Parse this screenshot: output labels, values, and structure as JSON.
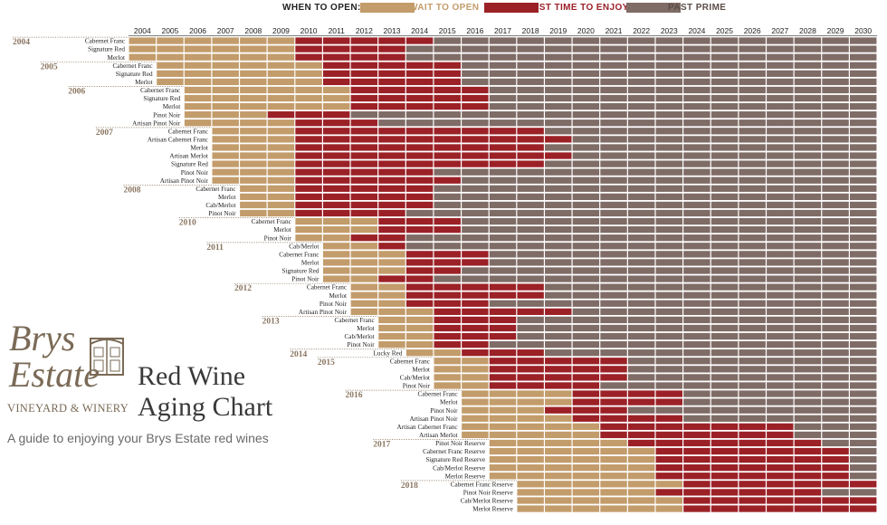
{
  "legend": {
    "title": "WHEN TO OPEN:",
    "items": [
      {
        "label": "WAIT TO OPEN",
        "color": "#c39c6b"
      },
      {
        "label": "BEST TIME TO ENJOY",
        "color": "#9b2127"
      },
      {
        "label": "PAST PRIME",
        "color": "#7f6c66"
      }
    ]
  },
  "branding": {
    "logo_line1": "Brys",
    "logo_line2": "Estate",
    "logo_sub": "VINEYARD & WINERY",
    "title_line1": "Red Wine",
    "title_line2": "Aging Chart",
    "tagline": "A guide to enjoying your Brys Estate red wines"
  },
  "chart_data": {
    "type": "timeline",
    "title": "Red Wine Aging Chart",
    "years": [
      2004,
      2005,
      2006,
      2007,
      2008,
      2009,
      2010,
      2011,
      2012,
      2013,
      2014,
      2015,
      2016,
      2017,
      2018,
      2019,
      2020,
      2021,
      2022,
      2023,
      2024,
      2025,
      2026,
      2027,
      2028,
      2029,
      2030
    ],
    "phases": [
      "Wait to open",
      "Best time to enjoy",
      "Past prime"
    ],
    "vintages": [
      {
        "vintage": "2004",
        "wines": [
          {
            "name": "Cabernet Franc",
            "start": 2004,
            "best": 2010,
            "past": 2015
          },
          {
            "name": "Signature Red",
            "start": 2004,
            "best": 2010,
            "past": 2014
          },
          {
            "name": "Merlot",
            "start": 2004,
            "best": 2010,
            "past": 2014
          }
        ]
      },
      {
        "vintage": "2005",
        "wines": [
          {
            "name": "Cabernet Franc",
            "start": 2005,
            "best": 2011,
            "past": 2016
          },
          {
            "name": "Signature Red",
            "start": 2005,
            "best": 2011,
            "past": 2016
          },
          {
            "name": "Merlot",
            "start": 2005,
            "best": 2011,
            "past": 2016
          }
        ]
      },
      {
        "vintage": "2006",
        "wines": [
          {
            "name": "Cabernet Franc",
            "start": 2006,
            "best": 2012,
            "past": 2017
          },
          {
            "name": "Signature Red",
            "start": 2006,
            "best": 2012,
            "past": 2017
          },
          {
            "name": "Merlot",
            "start": 2006,
            "best": 2012,
            "past": 2017
          },
          {
            "name": "Pinot Noir",
            "start": 2006,
            "best": 2009,
            "past": 2012
          },
          {
            "name": "Artisan Pinot Noir",
            "start": 2006,
            "best": 2010,
            "past": 2013
          }
        ]
      },
      {
        "vintage": "2007",
        "wines": [
          {
            "name": "Cabernet Franc",
            "start": 2007,
            "best": 2010,
            "past": 2019
          },
          {
            "name": "Artisan Cabernet Franc",
            "start": 2007,
            "best": 2010,
            "past": 2020
          },
          {
            "name": "Merlot",
            "start": 2007,
            "best": 2010,
            "past": 2019
          },
          {
            "name": "Artisan Merlot",
            "start": 2007,
            "best": 2010,
            "past": 2020
          },
          {
            "name": "Signature Red",
            "start": 2007,
            "best": 2010,
            "past": 2019
          },
          {
            "name": "Pinot Noir",
            "start": 2007,
            "best": 2010,
            "past": 2015
          },
          {
            "name": "Artisan Pinot Noir",
            "start": 2007,
            "best": 2010,
            "past": 2016
          }
        ]
      },
      {
        "vintage": "2008",
        "wines": [
          {
            "name": "Cabernet Franc",
            "start": 2008,
            "best": 2010,
            "past": 2015
          },
          {
            "name": "Merlot",
            "start": 2008,
            "best": 2010,
            "past": 2015
          },
          {
            "name": "Cab/Merlot",
            "start": 2008,
            "best": 2010,
            "past": 2015
          },
          {
            "name": "Pinot Noir",
            "start": 2008,
            "best": 2010,
            "past": 2014
          }
        ]
      },
      {
        "vintage": "2010",
        "wines": [
          {
            "name": "Cabernet Franc",
            "start": 2010,
            "best": 2013,
            "past": 2016
          },
          {
            "name": "Merlot",
            "start": 2010,
            "best": 2013,
            "past": 2016
          },
          {
            "name": "Pinot Noir",
            "start": 2010,
            "best": 2012,
            "past": 2014
          }
        ]
      },
      {
        "vintage": "2011",
        "wines": [
          {
            "name": "Cab/Merlot",
            "start": 2011,
            "best": 2013,
            "past": 2014
          },
          {
            "name": "Cabernet Franc",
            "start": 2011,
            "best": 2014,
            "past": 2017
          },
          {
            "name": "Merlot",
            "start": 2011,
            "best": 2014,
            "past": 2017
          },
          {
            "name": "Signature Red",
            "start": 2011,
            "best": 2014,
            "past": 2016
          },
          {
            "name": "Pinot Noir",
            "start": 2011,
            "best": 2013,
            "past": 2015
          }
        ]
      },
      {
        "vintage": "2012",
        "wines": [
          {
            "name": "Cabernet Franc",
            "start": 2012,
            "best": 2014,
            "past": 2019
          },
          {
            "name": "Merlot",
            "start": 2012,
            "best": 2014,
            "past": 2019
          },
          {
            "name": "Pinot Noir",
            "start": 2012,
            "best": 2014,
            "past": 2017
          },
          {
            "name": "Artisan Pinot Noir",
            "start": 2012,
            "best": 2015,
            "past": 2020
          }
        ]
      },
      {
        "vintage": "2013",
        "wines": [
          {
            "name": "Cabernet Franc",
            "start": 2013,
            "best": 2015,
            "past": 2018
          },
          {
            "name": "Merlot",
            "start": 2013,
            "best": 2015,
            "past": 2018
          },
          {
            "name": "Cab/Merlot",
            "start": 2013,
            "best": 2015,
            "past": 2018
          },
          {
            "name": "Pinot Noir",
            "start": 2013,
            "best": 2015,
            "past": 2017
          }
        ]
      },
      {
        "vintage": "2014",
        "wines": [
          {
            "name": "Lucky Red",
            "start": 2014,
            "best": 2016,
            "past": 2019
          }
        ]
      },
      {
        "vintage": "2015",
        "wines": [
          {
            "name": "Cabernet Franc",
            "start": 2015,
            "best": 2017,
            "past": 2022
          },
          {
            "name": "Merlot",
            "start": 2015,
            "best": 2017,
            "past": 2022
          },
          {
            "name": "Cab/Merlot",
            "start": 2015,
            "best": 2017,
            "past": 2022
          },
          {
            "name": "Pinot Noir",
            "start": 2015,
            "best": 2017,
            "past": 2021
          }
        ]
      },
      {
        "vintage": "2016",
        "wines": [
          {
            "name": "Cabernet Franc",
            "start": 2016,
            "best": 2020,
            "past": 2024
          },
          {
            "name": "Merlot",
            "start": 2016,
            "best": 2020,
            "past": 2024
          },
          {
            "name": "Pinot Noir",
            "start": 2016,
            "best": 2019,
            "past": 2022
          },
          {
            "name": "Artisan Pinot Noir",
            "start": 2016,
            "best": 2020,
            "past": 2024
          },
          {
            "name": "Artisan Cabernet Franc",
            "start": 2016,
            "best": 2021,
            "past": 2028
          },
          {
            "name": "Artisan Merlot",
            "start": 2016,
            "best": 2021,
            "past": 2028
          }
        ]
      },
      {
        "vintage": "2017",
        "wines": [
          {
            "name": "Pinot Noir Reserve",
            "start": 2017,
            "best": 2022,
            "past": 2029
          },
          {
            "name": "Cabernet Franc Reserve",
            "start": 2017,
            "best": 2023,
            "past": 2030
          },
          {
            "name": "Signature Red Reserve",
            "start": 2017,
            "best": 2023,
            "past": 2030
          },
          {
            "name": "Cab/Merlot Reserve",
            "start": 2017,
            "best": 2023,
            "past": 2030
          },
          {
            "name": "Merlot Reserve",
            "start": 2017,
            "best": 2023,
            "past": 2030
          }
        ]
      },
      {
        "vintage": "2018",
        "wines": [
          {
            "name": "Cabernet Franc Reserve",
            "start": 2018,
            "best": 2024,
            "past": 2031
          },
          {
            "name": "Pinot Noir Reserve",
            "start": 2018,
            "best": 2023,
            "past": 2029
          },
          {
            "name": "Cab/Merlot Reserve",
            "start": 2018,
            "best": 2024,
            "past": 2031
          },
          {
            "name": "Merlot Reserve",
            "start": 2018,
            "best": 2024,
            "past": 2031
          }
        ]
      }
    ]
  }
}
